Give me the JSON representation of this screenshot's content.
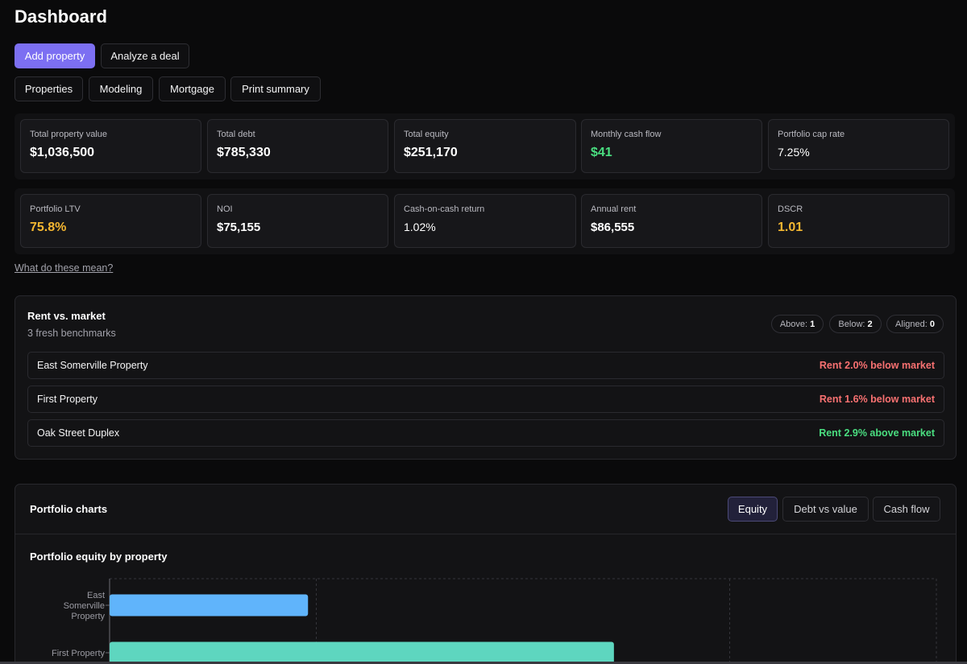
{
  "page": {
    "title": "Dashboard"
  },
  "actions": {
    "add_property": "Add property",
    "analyze_deal": "Analyze a deal"
  },
  "nav": {
    "properties": "Properties",
    "modeling": "Modeling",
    "mortgage": "Mortgage",
    "print_summary": "Print summary"
  },
  "metrics_row1": [
    {
      "label": "Total property value",
      "value": "$1,036,500",
      "tone": "neutral"
    },
    {
      "label": "Total debt",
      "value": "$785,330",
      "tone": "neutral"
    },
    {
      "label": "Total equity",
      "value": "$251,170",
      "tone": "neutral"
    },
    {
      "label": "Monthly cash flow",
      "value": "$41",
      "tone": "positive"
    },
    {
      "label": "Portfolio cap rate",
      "value": "7.25%",
      "tone": "neutral"
    }
  ],
  "metrics_row2": [
    {
      "label": "Portfolio LTV",
      "value": "75.8%",
      "tone": "warning"
    },
    {
      "label": "NOI",
      "value": "$75,155",
      "tone": "neutral"
    },
    {
      "label": "Cash-on-cash return",
      "value": "1.02%",
      "tone": "neutral"
    },
    {
      "label": "Annual rent",
      "value": "$86,555",
      "tone": "neutral"
    },
    {
      "label": "DSCR",
      "value": "1.01",
      "tone": "warning"
    }
  ],
  "help_link": "What do these mean?",
  "rent_vs_market": {
    "title": "Rent vs. market",
    "subtitle": "3 fresh benchmarks",
    "counts": {
      "above_label": "Above:",
      "above": "1",
      "below_label": "Below:",
      "below": "2",
      "aligned_label": "Aligned:",
      "aligned": "0"
    },
    "rows": [
      {
        "name": "East Somerville Property",
        "status": "Rent 2.0% below market",
        "direction": "below"
      },
      {
        "name": "First Property",
        "status": "Rent 1.6% below market",
        "direction": "below"
      },
      {
        "name": "Oak Street Duplex",
        "status": "Rent 2.9% above market",
        "direction": "above"
      }
    ]
  },
  "portfolio_charts": {
    "title": "Portfolio charts",
    "tabs": {
      "equity": "Equity",
      "debt_vs_value": "Debt vs value",
      "cash_flow": "Cash flow"
    },
    "active_tab": "Equity"
  },
  "colors": {
    "accent": "#7c6ff2",
    "positive": "#4ade80",
    "negative": "#f87171",
    "warning": "#f5b731",
    "bar_east_somerville": "#60b4fb",
    "bar_first_property": "#5ed6bf"
  },
  "chart_data": {
    "type": "bar",
    "orientation": "horizontal",
    "title": "Portfolio equity by property",
    "categories": [
      "East Somerville Property",
      "First Property"
    ],
    "category_lines": [
      [
        "East",
        "Somerville",
        "Property"
      ],
      [
        "First Property"
      ]
    ],
    "values": [
      48000,
      122000
    ],
    "xlim": [
      0,
      200000
    ],
    "grid": true,
    "partially_visible": true
  }
}
